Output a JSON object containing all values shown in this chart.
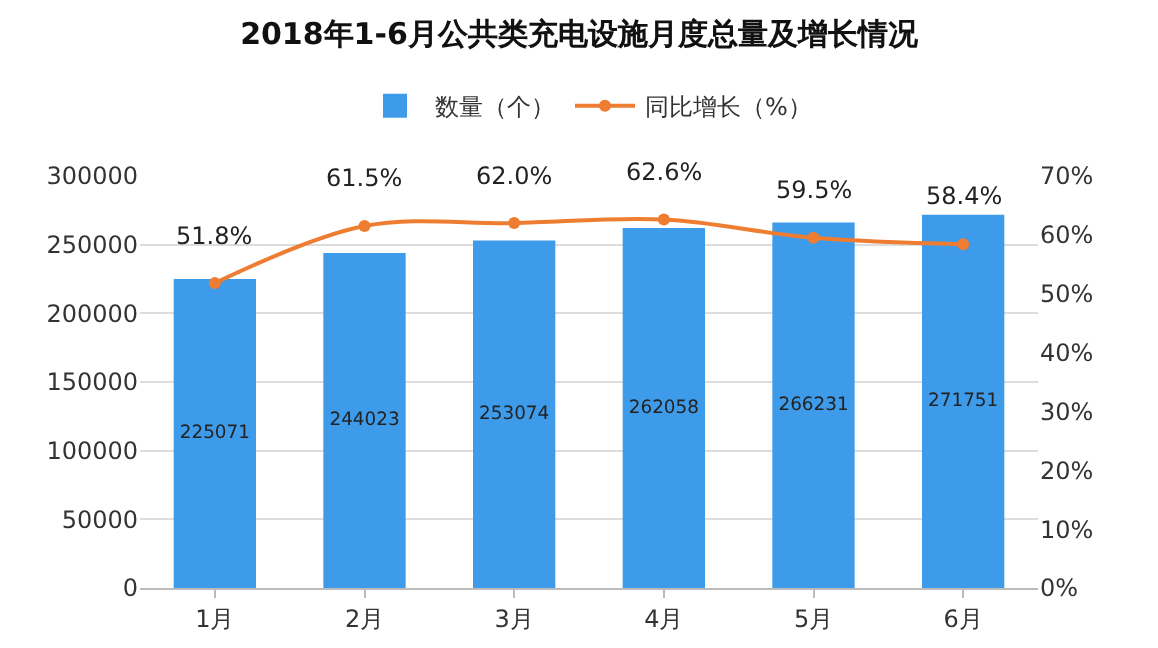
{
  "chart_data": {
    "type": "bar",
    "title": "2018年1-6月公共类充电设施月度总量及增长情况",
    "categories": [
      "1月",
      "2月",
      "3月",
      "4月",
      "5月",
      "6月"
    ],
    "series": [
      {
        "name": "数量（个）",
        "color": "#3e9bea",
        "values": [
          225071,
          244023,
          253074,
          262058,
          266231,
          271751
        ],
        "value_labels": [
          "225071",
          "244023",
          "253074",
          "262058",
          "266231",
          "271751"
        ]
      },
      {
        "name": "同比增长（%）",
        "type": "line",
        "axis": "y2",
        "color": "#ee7d31",
        "values": [
          51.8,
          61.5,
          62.0,
          62.6,
          59.5,
          58.4
        ],
        "value_labels": [
          "51.8%",
          "61.5%",
          "62.0%",
          "62.6%",
          "59.5%",
          "58.4%"
        ]
      }
    ],
    "ylim": [
      0,
      300000
    ],
    "yticks": [
      0,
      50000,
      100000,
      150000,
      200000,
      250000,
      300000
    ],
    "y2lim": [
      0,
      70
    ],
    "y2ticks": [
      {
        "value": 0,
        "label": "0%"
      },
      {
        "value": 10,
        "label": "10%"
      },
      {
        "value": 20,
        "label": "20%"
      },
      {
        "value": 30,
        "label": "30%"
      },
      {
        "value": 40,
        "label": "40%"
      },
      {
        "value": 50,
        "label": "50%"
      },
      {
        "value": 60,
        "label": "60%"
      },
      {
        "value": 70,
        "label": "70%"
      }
    ],
    "grid": "y",
    "legend": "top",
    "marker": "circle",
    "line_style": "solid"
  }
}
